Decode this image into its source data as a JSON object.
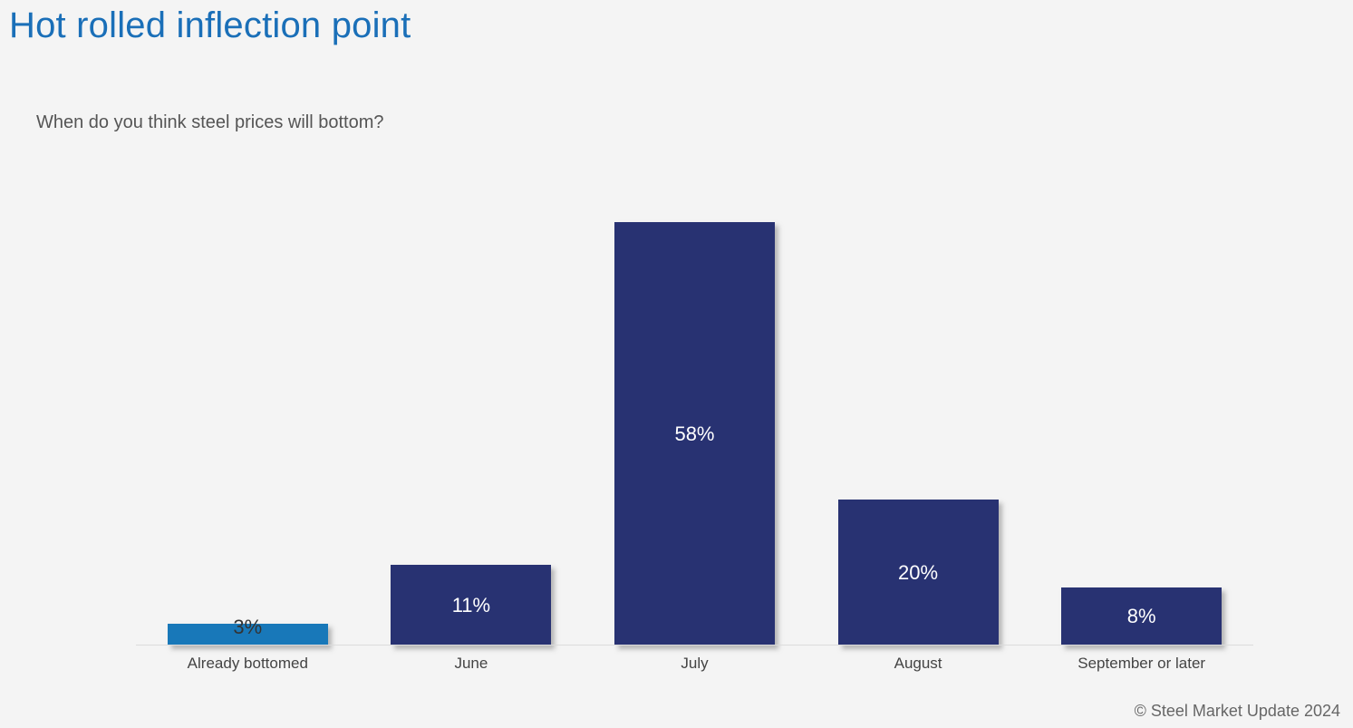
{
  "page": {
    "title": "Hot rolled inflection point",
    "question": "When do you think steel prices will bottom?",
    "footer": "© Steel Market Update 2024"
  },
  "colors": {
    "title_blue": "#1a6fb8",
    "bar_navy": "#283272",
    "bar_highlight_blue": "#1878b9",
    "background": "#f4f4f4",
    "axis_line": "#dcdcdc"
  },
  "chart_data": {
    "type": "bar",
    "title": "",
    "xlabel": "",
    "ylabel": "",
    "categories": [
      "Already bottomed",
      "June",
      "July",
      "August",
      "September or later"
    ],
    "values": [
      3,
      11,
      58,
      20,
      8
    ],
    "data_labels": [
      "3%",
      "11%",
      "58%",
      "20%",
      "8%"
    ],
    "bar_colors": [
      "#1878b9",
      "#283272",
      "#283272",
      "#283272",
      "#283272"
    ],
    "ylim": [
      0,
      60
    ],
    "grid": false,
    "legend": false,
    "axis_shown": "x-baseline-only"
  }
}
